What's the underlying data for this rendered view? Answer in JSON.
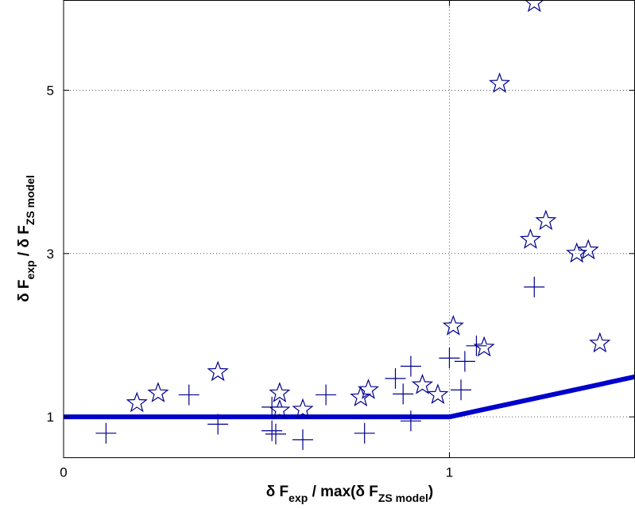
{
  "chart_data": {
    "type": "scatter",
    "title": "",
    "xlabel": "δ F exp / max(δ F ZS model)",
    "ylabel": "δ F exp / δ F ZS model",
    "xlabel_parts": {
      "pre": "δ F",
      "sub1": "exp",
      "mid": " / max(δ F",
      "sub2": "ZS model",
      "post": ")"
    },
    "ylabel_parts": {
      "pre": "δ F",
      "sub1": "exp",
      "mid": " / δ F",
      "sub2": "ZS model"
    },
    "xlim": [
      0,
      1.48
    ],
    "ylim": [
      0.5,
      6.1
    ],
    "x_ticks": [
      0,
      1
    ],
    "x_tick_labels": [
      "0",
      "1"
    ],
    "y_ticks": [
      1,
      3,
      5
    ],
    "y_tick_labels": [
      "1",
      "3",
      "5"
    ],
    "grid": {
      "x": [
        1
      ],
      "y": [
        1,
        3,
        5
      ],
      "style": "dotted"
    },
    "colors": {
      "markers": "#00008b",
      "line": "#0000cc"
    },
    "series": [
      {
        "marker": "star",
        "points": [
          [
            0.19,
            1.17
          ],
          [
            0.245,
            1.29
          ],
          [
            0.4,
            1.55
          ],
          [
            0.56,
            1.08
          ],
          [
            0.56,
            1.29
          ],
          [
            0.62,
            1.09
          ],
          [
            0.77,
            1.24
          ],
          [
            0.79,
            1.33
          ],
          [
            0.93,
            1.39
          ],
          [
            0.97,
            1.27
          ],
          [
            1.01,
            2.11
          ],
          [
            1.09,
            1.85
          ],
          [
            1.13,
            5.08
          ],
          [
            1.21,
            3.17
          ],
          [
            1.25,
            3.4
          ],
          [
            1.22,
            6.07
          ],
          [
            1.33,
            3.0
          ],
          [
            1.36,
            3.04
          ],
          [
            1.39,
            1.9
          ]
        ]
      },
      {
        "marker": "plus",
        "points": [
          [
            0.11,
            0.8
          ],
          [
            0.325,
            1.27
          ],
          [
            0.4,
            0.91
          ],
          [
            0.54,
            1.12
          ],
          [
            0.54,
            0.83
          ],
          [
            0.55,
            0.79
          ],
          [
            0.62,
            0.72
          ],
          [
            0.68,
            1.27
          ],
          [
            0.78,
            0.8
          ],
          [
            0.86,
            1.47
          ],
          [
            0.88,
            1.28
          ],
          [
            0.9,
            1.62
          ],
          [
            0.9,
            0.95
          ],
          [
            1.0,
            1.72
          ],
          [
            1.03,
            1.33
          ],
          [
            1.04,
            1.68
          ],
          [
            1.07,
            1.87
          ],
          [
            1.22,
            2.59
          ]
        ]
      },
      {
        "type": "line",
        "points": [
          [
            0,
            1.0
          ],
          [
            1.0,
            1.0
          ],
          [
            1.48,
            1.49
          ]
        ]
      }
    ]
  }
}
